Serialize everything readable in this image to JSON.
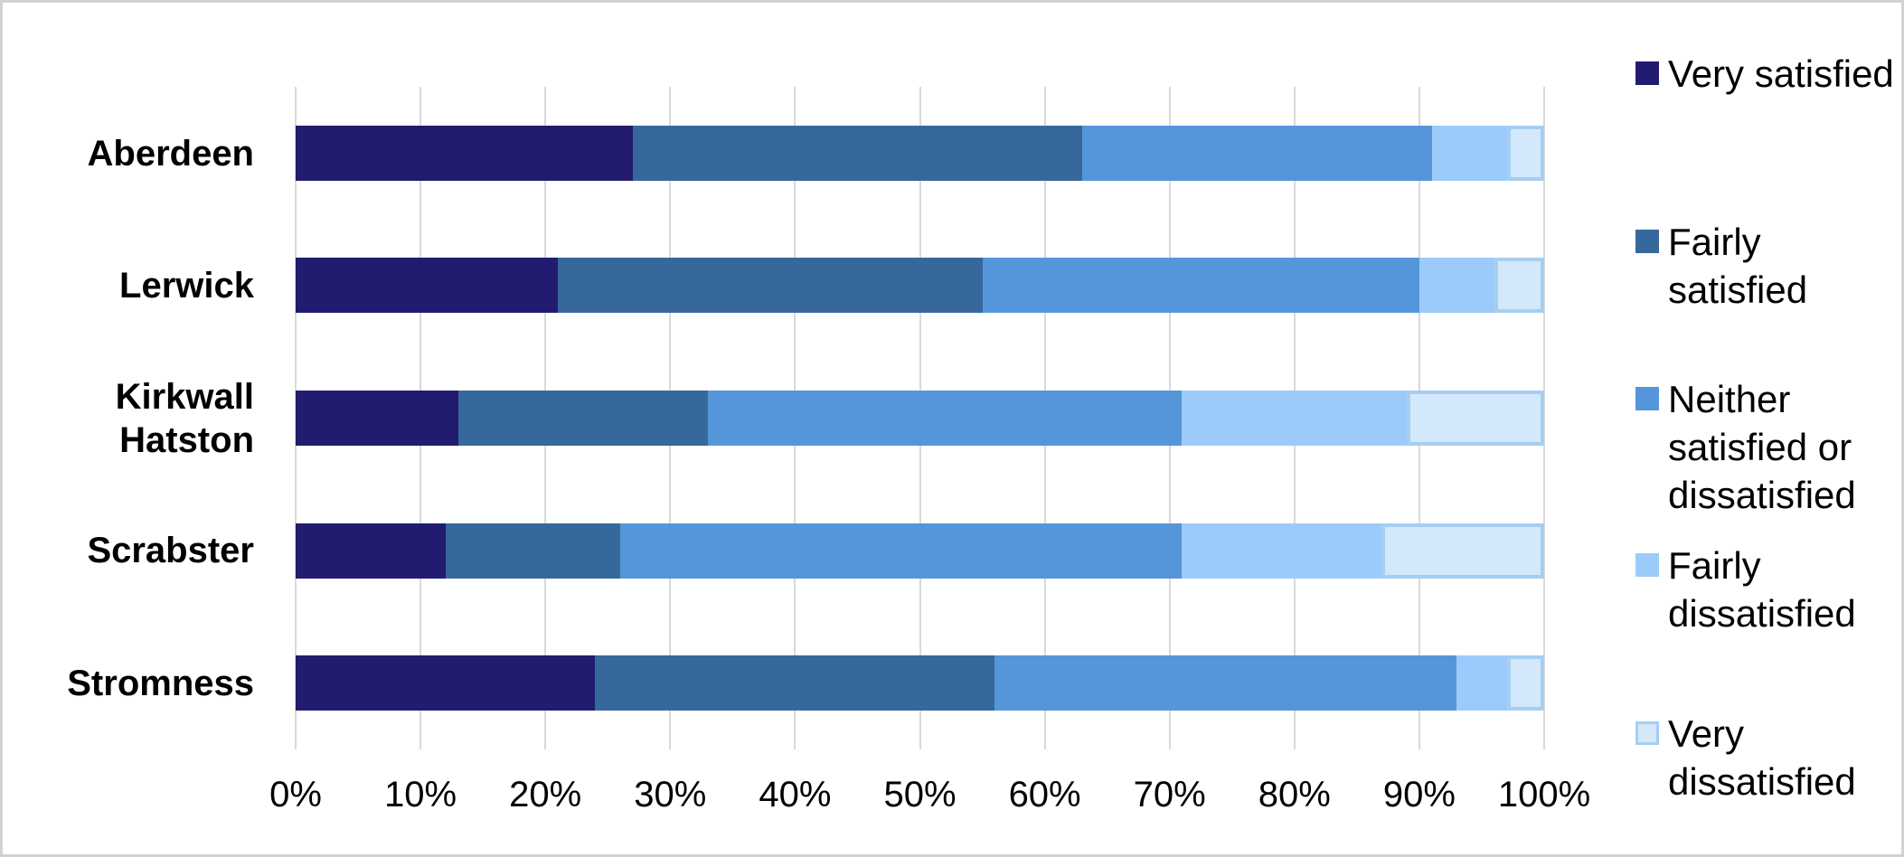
{
  "chart_data": {
    "type": "bar",
    "stacked": true,
    "orientation": "horizontal",
    "title": "",
    "categories": [
      "Aberdeen",
      "Lerwick",
      "Kirkwall Hatston",
      "Scrabster",
      "Stromness"
    ],
    "categories_display": [
      "Aberdeen",
      "Lerwick",
      "Kirkwall\nHatston",
      "Scrabster",
      "Stromness"
    ],
    "series": [
      {
        "name": "Very satisfied",
        "color": "#211c6f",
        "values": [
          27,
          21,
          13,
          12,
          24
        ]
      },
      {
        "name": "Fairly satisfied",
        "color": "#36689b",
        "values": [
          36,
          34,
          20,
          14,
          32
        ]
      },
      {
        "name": "Neither satisfied or dissatisfied",
        "color": "#5596db",
        "values": [
          28,
          35,
          38,
          45,
          37
        ]
      },
      {
        "name": "Fairly dissatisfied",
        "color": "#9ccbfb",
        "values": [
          6,
          6,
          18,
          16,
          4
        ]
      },
      {
        "name": "Very dissatisfied",
        "color": "#d3e8fa",
        "border_color": "#a6cef3",
        "values": [
          3,
          4,
          11,
          13,
          3
        ]
      }
    ],
    "x_ticks": [
      "0%",
      "10%",
      "20%",
      "30%",
      "40%",
      "50%",
      "60%",
      "70%",
      "80%",
      "90%",
      "100%"
    ],
    "xlim": [
      0,
      100
    ],
    "grid": true,
    "gridline_color": "#d9d9d9",
    "legend_position": "right",
    "unit": "percent"
  }
}
